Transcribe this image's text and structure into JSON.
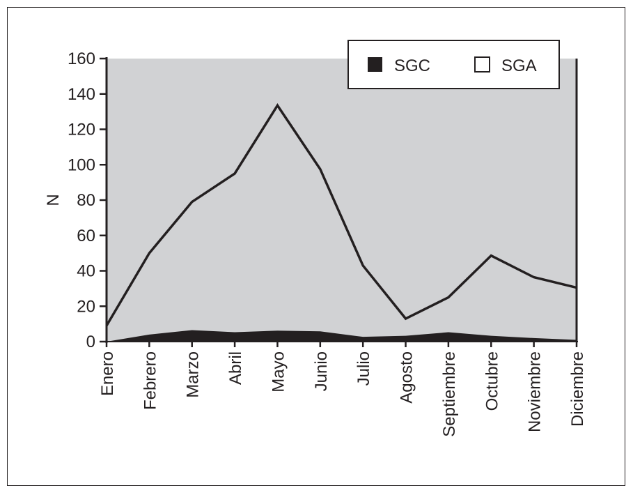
{
  "chart_data": {
    "type": "area",
    "categories": [
      "Enero",
      "Febrero",
      "Marzo",
      "Abril",
      "Mayo",
      "Junio",
      "Julio",
      "Agosto",
      "Septiembre",
      "Octubre",
      "Noviembre",
      "Diciembre"
    ],
    "series": [
      {
        "name": "SGC",
        "style": "filled area",
        "values": [
          0,
          4,
          6.5,
          5.3,
          6.2,
          5.8,
          2.7,
          3.3,
          5.3,
          3.3,
          2,
          1
        ]
      },
      {
        "name": "SGA",
        "style": "line",
        "values": [
          9,
          50,
          79,
          95,
          133.5,
          97.5,
          43,
          13,
          25,
          48.6,
          36.4,
          30.5
        ]
      }
    ],
    "title": "",
    "xlabel": "",
    "ylabel": "N",
    "ylim": [
      0,
      160
    ],
    "yticks": [
      "0",
      "20",
      "40",
      "60",
      "80",
      "100",
      "120",
      "140",
      "160"
    ],
    "grid": false,
    "legend": "top-right",
    "colors": {
      "plot_background": "#d1d2d4",
      "SGC": "#231f20",
      "SGA_line": "#231f20",
      "SGA_legend_swatch": "#ffffff"
    }
  }
}
